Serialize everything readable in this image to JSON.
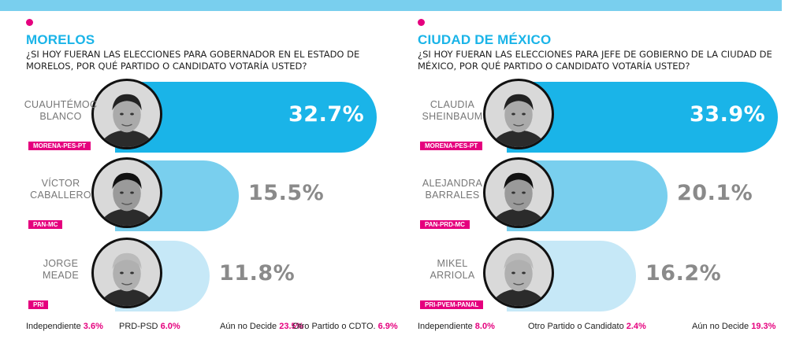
{
  "chart_data": [
    {
      "type": "bar",
      "title": "MORELOS",
      "subtitle": "¿SI HOY FUERAN LAS ELECCIONES PARA GOBERNADOR EN EL ESTADO DE MORELOS, POR QUÉ PARTIDO O CANDIDATO VOTARÍA USTED?",
      "categories": [
        "CUAUHTÉMOC BLANCO",
        "VÍCTOR CABALLERO",
        "JORGE MEADE"
      ],
      "parties": [
        "MORENA-PES-PT",
        "PAN-MC",
        "PRI"
      ],
      "values": [
        32.7,
        15.5,
        11.8
      ],
      "labels": [
        "32.7%",
        "15.5%",
        "11.8%"
      ],
      "colors": [
        "#1ab4e8",
        "#79cfee",
        "#c6e8f7"
      ],
      "others": [
        {
          "label": "Independiente",
          "value": "3.6%"
        },
        {
          "label": "PRD-PSD",
          "value": "6.0%"
        },
        {
          "label": "Aún no Decide",
          "value": "23.5%"
        },
        {
          "label": "Otro Partido o CDTO.",
          "value": "6.9%"
        }
      ]
    },
    {
      "type": "bar",
      "title": "CIUDAD DE MÉXICO",
      "subtitle": "¿SI HOY FUERAN LAS ELECCIONES PARA JEFE DE GOBIERNO DE LA CIUDAD DE MÉXICO, POR QUÉ PARTIDO O CANDIDATO VOTARÍA USTED?",
      "categories": [
        "CLAUDIA SHEINBAUM",
        "ALEJANDRA BARRALES",
        "MIKEL ARRIOLA"
      ],
      "parties": [
        "MORENA-PES-PT",
        "PAN-PRD-MC",
        "PRI-PVEM-PANAL"
      ],
      "values": [
        33.9,
        20.1,
        16.2
      ],
      "labels": [
        "33.9%",
        "20.1%",
        "16.2%"
      ],
      "colors": [
        "#1ab4e8",
        "#79cfee",
        "#c6e8f7"
      ],
      "others": [
        {
          "label": "Independiente",
          "value": "8.0%"
        },
        {
          "label": "Otro Partido o Candidato",
          "value": "2.4%"
        },
        {
          "label": "Aún no Decide",
          "value": "19.3%"
        }
      ]
    }
  ]
}
